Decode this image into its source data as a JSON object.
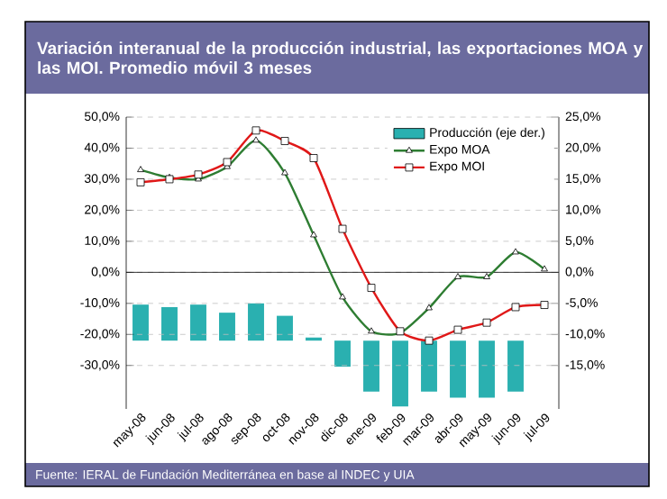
{
  "chart_data": {
    "type": "line",
    "title": "Variación interanual de la producción industrial, las exportaciones MOA y las MOI. Promedio móvil 3 meses",
    "categories": [
      "may-08",
      "jun-08",
      "jul-08",
      "ago-08",
      "sep-08",
      "oct-08",
      "nov-08",
      "dic-08",
      "ene-09",
      "feb-09",
      "mar-09",
      "abr-09",
      "may-09",
      "jun-09",
      "jul-09"
    ],
    "series": [
      {
        "name": "Producción (eje der.)",
        "type": "bar",
        "axis": "y2",
        "color": "#2ab0b0",
        "base": [
          -11,
          -11,
          -11,
          -11,
          -11,
          -11,
          -11,
          -11,
          -11,
          -11,
          -11,
          -11,
          -11,
          -11,
          null
        ],
        "values": [
          5.8,
          5.4,
          5.8,
          4.5,
          6,
          4,
          0.5,
          -4.2,
          -8.2,
          -10.6,
          -8.2,
          -9.2,
          -9.2,
          -8.2,
          null
        ]
      },
      {
        "name": "Expo MOA",
        "color": "#2e7d32",
        "marker": "triangle",
        "values": [
          33,
          30.5,
          30,
          34,
          42.5,
          32,
          12,
          -8,
          -19,
          -19.5,
          -11.5,
          -1.5,
          -1.5,
          6.5,
          1
        ]
      },
      {
        "name": "Expo MOI",
        "color": "#e01818",
        "marker": "square",
        "values": [
          29,
          30,
          31.5,
          35.5,
          45.7,
          42.3,
          36.8,
          14,
          -5,
          -19,
          -22,
          -18.5,
          -16.2,
          -11.2,
          -10.5
        ]
      }
    ],
    "ylim": [
      -44,
      50
    ],
    "yticks": [
      {
        "value": -30,
        "label": "-30,0%"
      },
      {
        "value": -20,
        "label": "-20,0%"
      },
      {
        "value": -10,
        "label": "-10,0%"
      },
      {
        "value": 0,
        "label": "0,0%"
      },
      {
        "value": 10,
        "label": "10,0%"
      },
      {
        "value": 20,
        "label": "20,0%"
      },
      {
        "value": 30,
        "label": "30,0%"
      },
      {
        "value": 40,
        "label": "40,0%"
      },
      {
        "value": 50,
        "label": "50,0%"
      }
    ],
    "y2lim": [
      -22,
      25
    ],
    "y2ticks": [
      {
        "value": -15,
        "label": "-15,0%"
      },
      {
        "value": -10,
        "label": "-10,0%"
      },
      {
        "value": -5,
        "label": "-5,0%"
      },
      {
        "value": 0,
        "label": "0,0%"
      },
      {
        "value": 5,
        "label": "5,0%"
      },
      {
        "value": 10,
        "label": "10,0%"
      },
      {
        "value": 15,
        "label": "15,0%"
      },
      {
        "value": 20,
        "label": "20,0%"
      },
      {
        "value": 25,
        "label": "25,0%"
      }
    ],
    "grid": "y",
    "legend": "top right",
    "line_style": "solid",
    "annotations": [
      "Fuente: IERAL de Fundación Mediterránea en base al INDEC y UIA"
    ]
  }
}
